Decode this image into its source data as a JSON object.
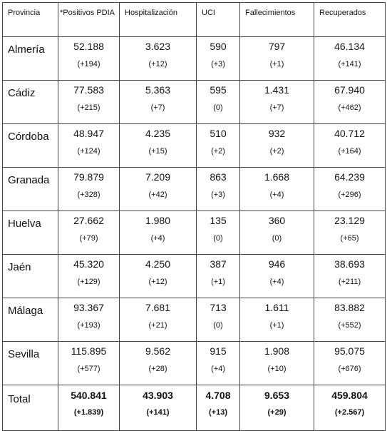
{
  "headers": {
    "provincia": "Provincia",
    "positivos": "*Positivos PDIA",
    "hospitalizacion": "Hospitalización",
    "uci": "UCI",
    "fallecimientos": "Fallecimientos",
    "recuperados": "Recuperados"
  },
  "rows": [
    {
      "provincia": "Almería",
      "positivos": "52.188",
      "positivos_chg": "(+194)",
      "hosp": "3.623",
      "hosp_chg": "(+12)",
      "uci": "590",
      "uci_chg": "(+3)",
      "fall": "797",
      "fall_chg": "(+1)",
      "recup": "46.134",
      "recup_chg": "(+141)"
    },
    {
      "provincia": "Cádiz",
      "positivos": "77.583",
      "positivos_chg": "(+215)",
      "hosp": "5.363",
      "hosp_chg": "(+7)",
      "uci": "595",
      "uci_chg": "(0)",
      "fall": "1.431",
      "fall_chg": "(+7)",
      "recup": "67.940",
      "recup_chg": "(+462)"
    },
    {
      "provincia": "Córdoba",
      "positivos": "48.947",
      "positivos_chg": "(+124)",
      "hosp": "4.235",
      "hosp_chg": "(+15)",
      "uci": "510",
      "uci_chg": "(+2)",
      "fall": "932",
      "fall_chg": "(+2)",
      "recup": "40.712",
      "recup_chg": "(+164)"
    },
    {
      "provincia": "Granada",
      "positivos": "79.879",
      "positivos_chg": "(+328)",
      "hosp": "7.209",
      "hosp_chg": "(+42)",
      "uci": "863",
      "uci_chg": "(+3)",
      "fall": "1.668",
      "fall_chg": "(+4)",
      "recup": "64.239",
      "recup_chg": "(+296)"
    },
    {
      "provincia": "Huelva",
      "positivos": "27.662",
      "positivos_chg": "(+79)",
      "hosp": "1.980",
      "hosp_chg": "(+4)",
      "uci": "135",
      "uci_chg": "(0)",
      "fall": "360",
      "fall_chg": "(0)",
      "recup": "23.129",
      "recup_chg": "(+65)"
    },
    {
      "provincia": "Jaén",
      "positivos": "45.320",
      "positivos_chg": "(+129)",
      "hosp": "4.250",
      "hosp_chg": "(+12)",
      "uci": "387",
      "uci_chg": "(+1)",
      "fall": "946",
      "fall_chg": "(+4)",
      "recup": "38.693",
      "recup_chg": "(+211)"
    },
    {
      "provincia": "Málaga",
      "positivos": "93.367",
      "positivos_chg": "(+193)",
      "hosp": "7.681",
      "hosp_chg": "(+21)",
      "uci": "713",
      "uci_chg": "(0)",
      "fall": "1.611",
      "fall_chg": "(+1)",
      "recup": "83.882",
      "recup_chg": "(+552)"
    },
    {
      "provincia": "Sevilla",
      "positivos": "115.895",
      "positivos_chg": "(+577)",
      "hosp": "9.562",
      "hosp_chg": "(+28)",
      "uci": "915",
      "uci_chg": "(+4)",
      "fall": "1.908",
      "fall_chg": "(+10)",
      "recup": "95.075",
      "recup_chg": "(+676)"
    }
  ],
  "total": {
    "provincia": "Total",
    "positivos": "540.841",
    "positivos_chg": "(+1.839)",
    "hosp": "43.903",
    "hosp_chg": "(+141)",
    "uci": "4.708",
    "uci_chg": "(+13)",
    "fall": "9.653",
    "fall_chg": "(+29)",
    "recup": "459.804",
    "recup_chg": "(+2.567)"
  }
}
